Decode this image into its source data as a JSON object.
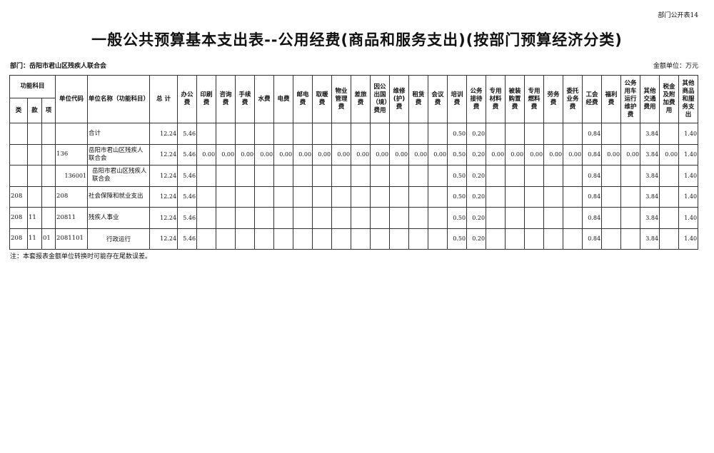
{
  "table_no": "部门公开表14",
  "title": "一般公共预算基本支出表--公用经费(商品和服务支出)(按部门预算经济分类)",
  "department": "部门：岳阳市君山区残疾人联合会",
  "unit": "金额单位：万元",
  "header": {
    "func_subject": "功能科目",
    "lei": "类",
    "kuan": "款",
    "xiang": "项",
    "unit_code": "单位代码",
    "unit_name": "单位名称（功能科目）",
    "total": "总  计",
    "columns": [
      "办公费",
      "印刷费",
      "咨询费",
      "手续费",
      "水费",
      "电费",
      "邮电费",
      "取暖费",
      "物业管理费",
      "差旅费",
      "因公出国（境）费用",
      "维修(护)费",
      "租赁费",
      "会议费",
      "培训费",
      "公务接待费",
      "专用材料费",
      "被装购置费",
      "专用燃料费",
      "劳务费",
      "委托业务费",
      "工会经费",
      "福利费",
      "公务用车运行维护费",
      "其他交通费用",
      "税金及附加费用",
      "其他商品和服务支出"
    ]
  },
  "rows": [
    [
      "",
      "",
      "",
      "",
      "合计",
      "12.24",
      "5.46",
      "",
      "",
      "",
      "",
      "",
      "",
      "",
      "",
      "",
      "",
      "",
      "",
      "",
      "0.50",
      "0.20",
      "",
      "",
      "",
      "",
      "",
      "0.84",
      "",
      "",
      "3.84",
      "",
      "1.40"
    ],
    [
      "",
      "",
      "",
      "136",
      "岳阳市君山区残疾人联合会",
      "12.24",
      "5.46",
      "0.00",
      "0.00",
      "0.00",
      "0.00",
      "0.00",
      "0.00",
      "0.00",
      "0.00",
      "0.00",
      "0.00",
      "0.00",
      "0.00",
      "0.00",
      "0.50",
      "0.20",
      "0.00",
      "0.00",
      "0.00",
      "0.00",
      "0.00",
      "0.84",
      "0.00",
      "0.00",
      "3.84",
      "0.00",
      "1.40"
    ],
    [
      "",
      "",
      "",
      "136001",
      "岳阳市君山区残疾人联合会",
      "12.24",
      "5.46",
      "",
      "",
      "",
      "",
      "",
      "",
      "",
      "",
      "",
      "",
      "",
      "",
      "",
      "0.50",
      "0.20",
      "",
      "",
      "",
      "",
      "",
      "0.84",
      "",
      "",
      "3.84",
      "",
      "1.40"
    ],
    [
      "208",
      "",
      "",
      "208",
      "社会保障和就业支出",
      "12.24",
      "5.46",
      "",
      "",
      "",
      "",
      "",
      "",
      "",
      "",
      "",
      "",
      "",
      "",
      "",
      "0.50",
      "0.20",
      "",
      "",
      "",
      "",
      "",
      "0.84",
      "",
      "",
      "3.84",
      "",
      "1.40"
    ],
    [
      "208",
      "11",
      "",
      "20811",
      "残疾人事业",
      "12.24",
      "5.46",
      "",
      "",
      "",
      "",
      "",
      "",
      "",
      "",
      "",
      "",
      "",
      "",
      "",
      "0.50",
      "0.20",
      "",
      "",
      "",
      "",
      "",
      "0.84",
      "",
      "",
      "3.84",
      "",
      "1.40"
    ],
    [
      "208",
      "11",
      "01",
      "2081101",
      "行政运行",
      "12.24",
      "5.46",
      "",
      "",
      "",
      "",
      "",
      "",
      "",
      "",
      "",
      "",
      "",
      "",
      "",
      "0.50",
      "0.20",
      "",
      "",
      "",
      "",
      "",
      "0.84",
      "",
      "",
      "3.84",
      "",
      "1.40"
    ]
  ],
  "note": "注：本套报表金额单位转换时可能存在尾数误差。"
}
